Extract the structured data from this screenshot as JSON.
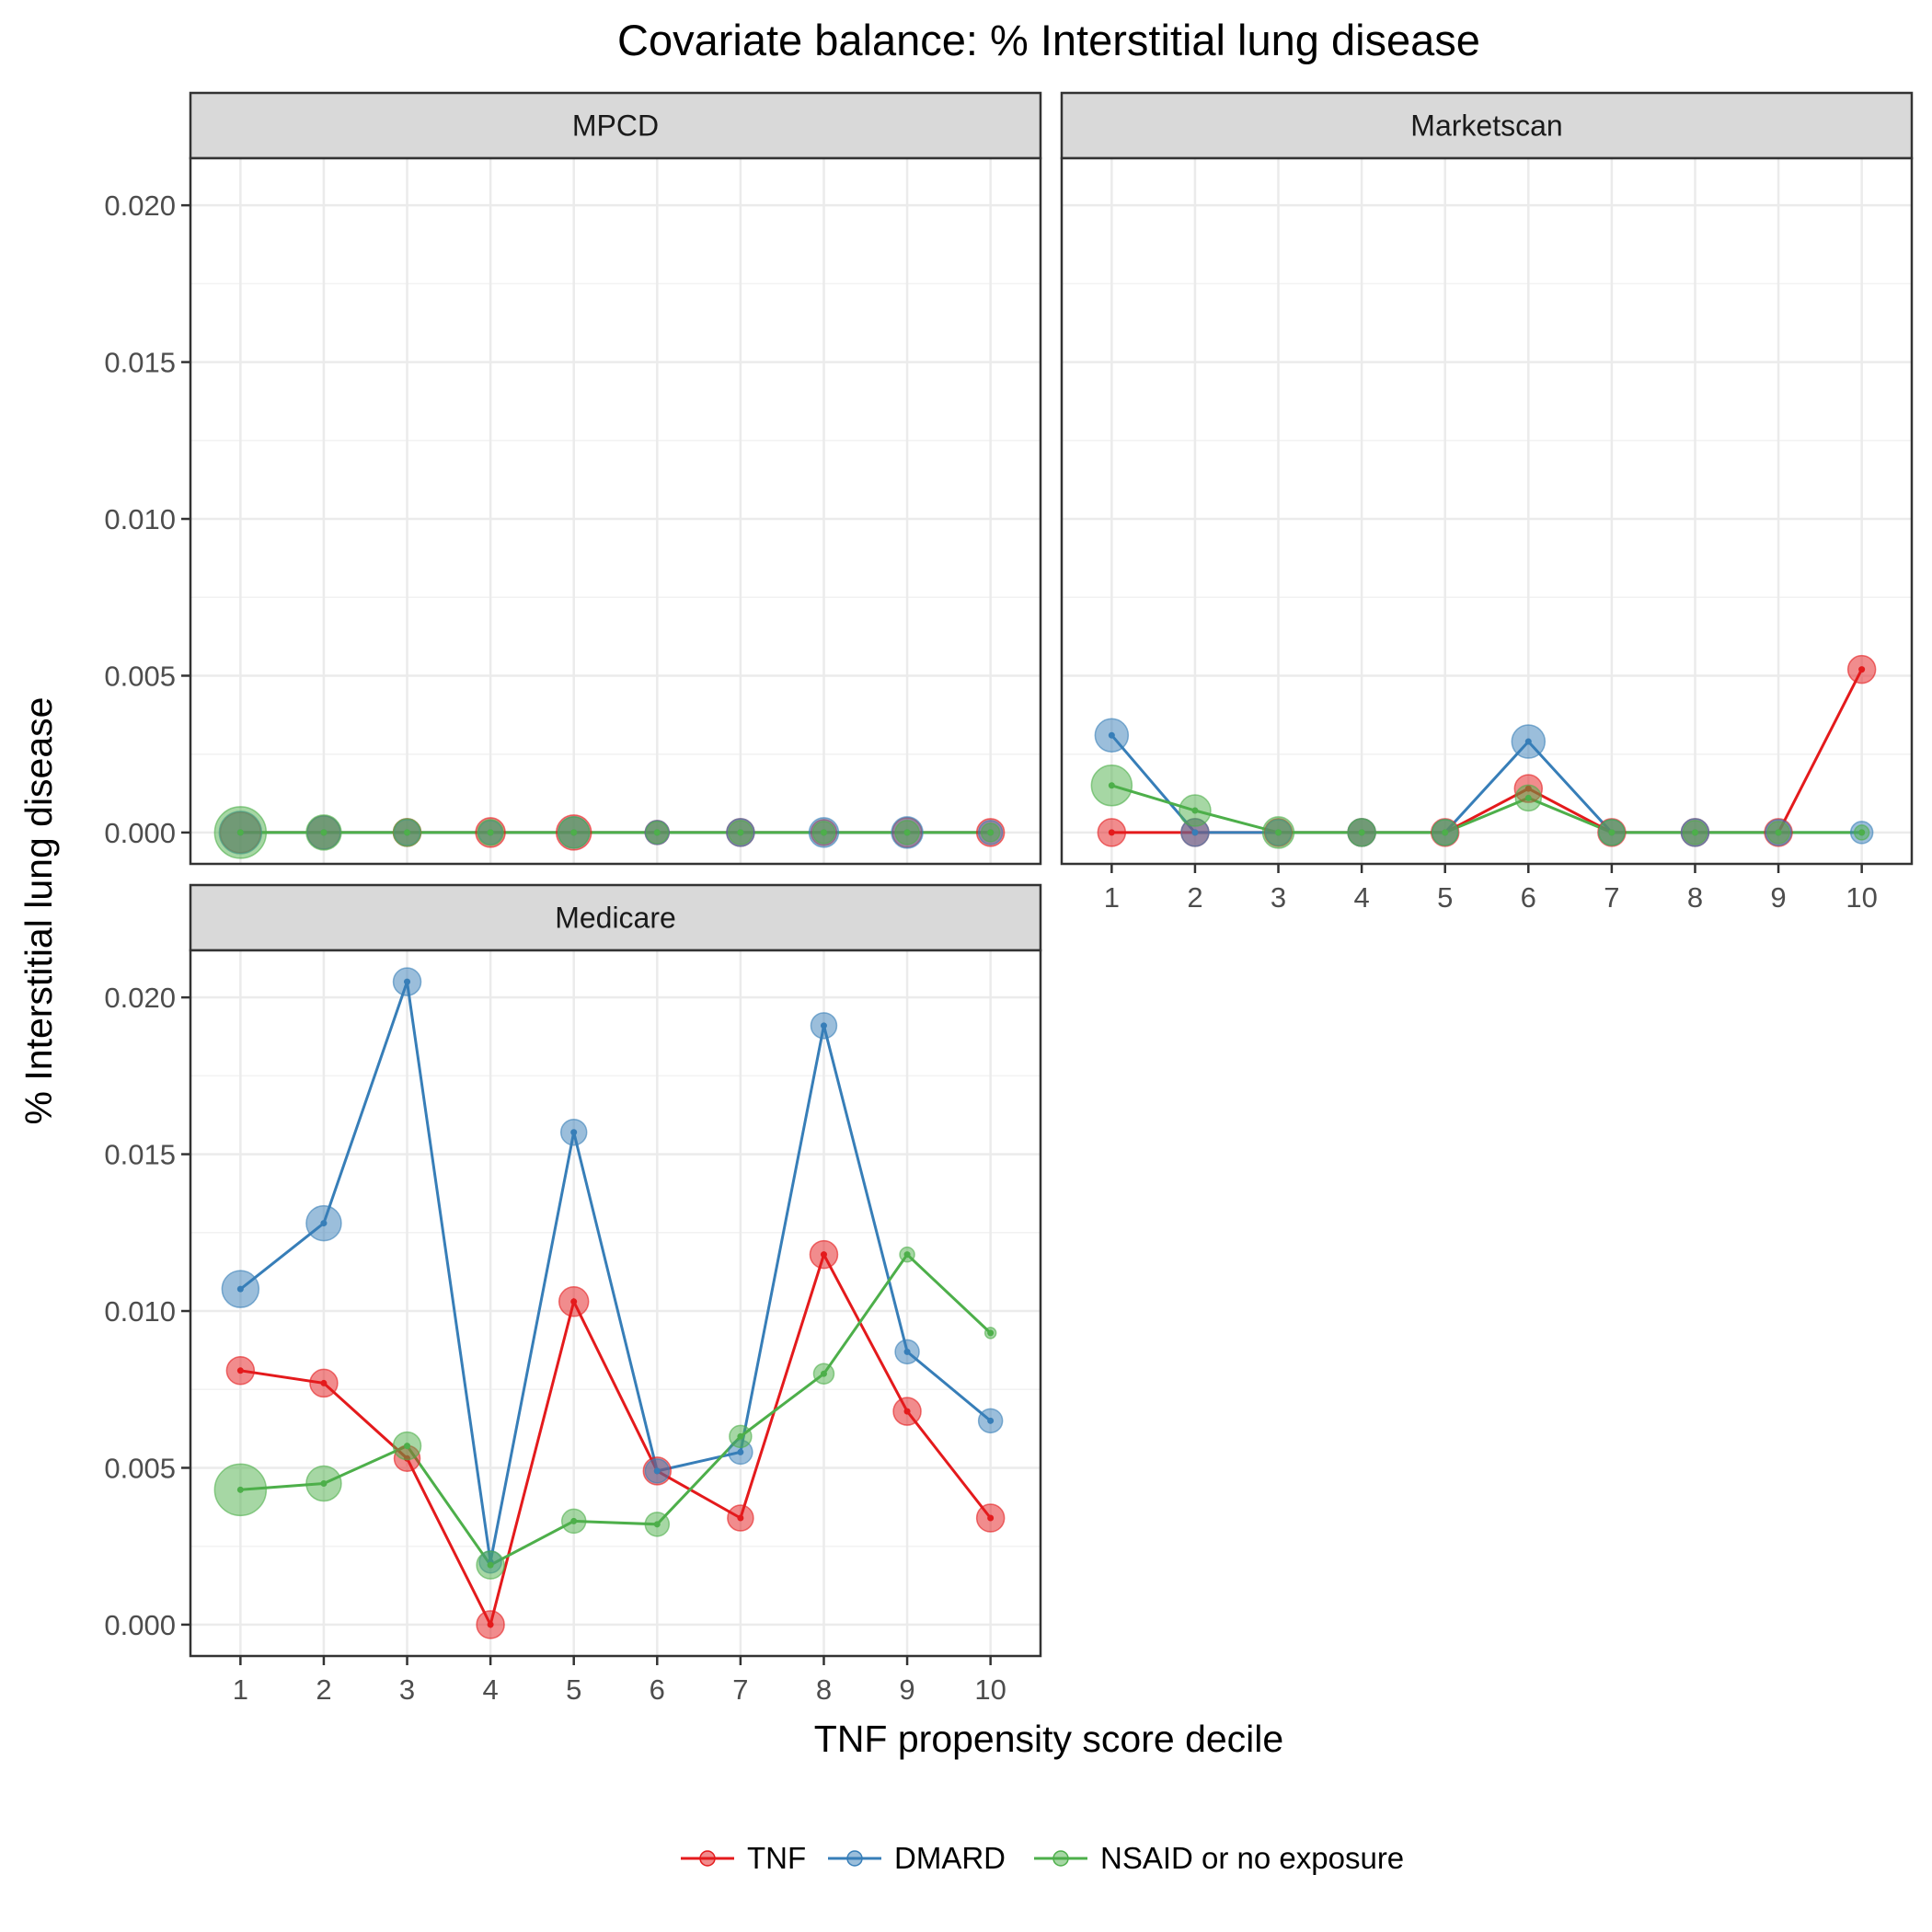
{
  "chart_data": {
    "type": "line",
    "title": "Covariate balance: % Interstitial lung disease",
    "xlabel": "TNF propensity score decile",
    "ylabel": "% Interstitial lung disease",
    "x": [
      1,
      2,
      3,
      4,
      5,
      6,
      7,
      8,
      9,
      10
    ],
    "x_tick_labels": [
      "1",
      "2",
      "3",
      "4",
      "5",
      "6",
      "7",
      "8",
      "9",
      "10"
    ],
    "y_ticks": [
      0.0,
      0.005,
      0.01,
      0.015,
      0.02
    ],
    "y_tick_labels": [
      "0.000",
      "0.005",
      "0.010",
      "0.015",
      "0.020"
    ],
    "ylim": [
      -0.001,
      0.0215
    ],
    "xlim": [
      0.4,
      10.6
    ],
    "grid": true,
    "legend_position": "bottom",
    "legend": [
      {
        "name": "TNF",
        "color": "#e41a1c"
      },
      {
        "name": "DMARD",
        "color": "#377eb8"
      },
      {
        "name": "NSAID or no exposure",
        "color": "#4daf4a"
      }
    ],
    "panels": [
      {
        "name": "MPCD",
        "series": [
          {
            "name": "TNF",
            "values": [
              0,
              0,
              0,
              0,
              0,
              0,
              0,
              0,
              0,
              0
            ],
            "sizes": [
              22,
              18,
              15,
              16,
              19,
              13,
              15,
              14,
              16,
              15
            ]
          },
          {
            "name": "DMARD",
            "values": [
              0,
              0,
              0,
              0,
              0,
              0,
              0,
              0,
              0,
              0
            ],
            "sizes": [
              23,
              18,
              14,
              13,
              17,
              13,
              15,
              16,
              17,
              13
            ]
          },
          {
            "name": "NSAID or no exposure",
            "values": [
              0,
              0,
              0,
              0,
              0,
              0,
              0,
              0,
              0,
              0
            ],
            "sizes": [
              28,
              19,
              15,
              14,
              17,
              12,
              13,
              12,
              13,
              10
            ]
          }
        ]
      },
      {
        "name": "Marketscan",
        "series": [
          {
            "name": "TNF",
            "values": [
              0,
              0,
              0,
              0,
              0,
              0.0014,
              0,
              0,
              0,
              0.0052
            ],
            "sizes": [
              15,
              15,
              15,
              15,
              15,
              15,
              15,
              15,
              15,
              15
            ]
          },
          {
            "name": "DMARD",
            "values": [
              0.0031,
              0,
              0,
              0,
              0,
              0.0029,
              0,
              0,
              0,
              0
            ],
            "sizes": [
              18,
              15,
              14,
              15,
              14,
              18,
              14,
              15,
              14,
              12
            ]
          },
          {
            "name": "NSAID or no exposure",
            "values": [
              0.0015,
              0.0007,
              0,
              0,
              0,
              0.0011,
              0,
              0,
              0,
              0
            ],
            "sizes": [
              22,
              17,
              17,
              15,
              14,
              14,
              14,
              13,
              12,
              8
            ]
          }
        ]
      },
      {
        "name": "Medicare",
        "series": [
          {
            "name": "TNF",
            "values": [
              0.0081,
              0.0077,
              0.0053,
              0.0,
              0.0103,
              0.0049,
              0.0034,
              0.0118,
              0.0068,
              0.0034
            ],
            "sizes": [
              15,
              15,
              14,
              15,
              16,
              15,
              14,
              15,
              15,
              15
            ]
          },
          {
            "name": "DMARD",
            "values": [
              0.0107,
              0.0128,
              0.0205,
              0.002,
              0.0157,
              0.0049,
              0.0055,
              0.0191,
              0.0087,
              0.0065
            ],
            "sizes": [
              20,
              19,
              15,
              12,
              14,
              13,
              13,
              14,
              13,
              13
            ]
          },
          {
            "name": "NSAID or no exposure",
            "values": [
              0.0043,
              0.0045,
              0.0057,
              0.0019,
              0.0033,
              0.0032,
              0.006,
              0.008,
              0.0118,
              0.0093
            ],
            "sizes": [
              28,
              19,
              15,
              15,
              13,
              13,
              12,
              11,
              8,
              6
            ]
          }
        ]
      }
    ]
  }
}
